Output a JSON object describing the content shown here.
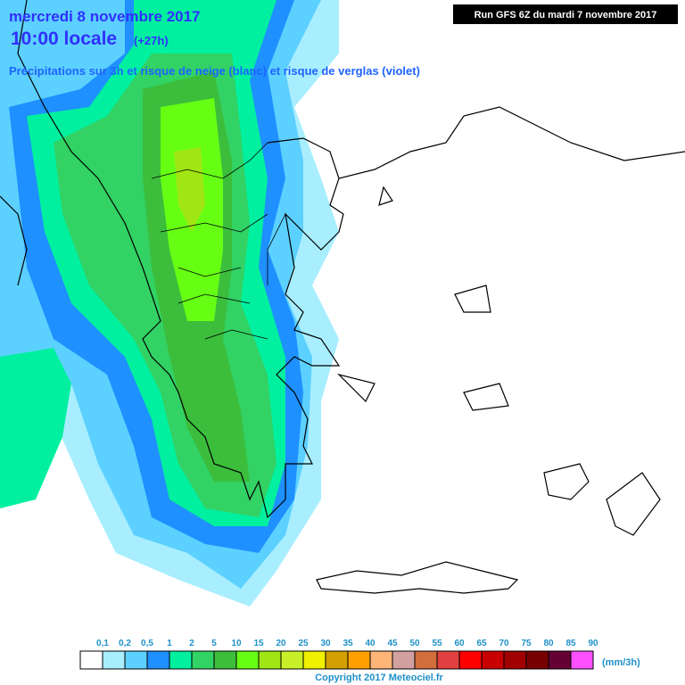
{
  "header": {
    "date": "mercredi 8 novembre 2017",
    "time": "10:00 locale",
    "offset": "(+27h)",
    "subtitle": "Précipitations sur 3h et risque de neige (blanc) et risque de verglas (violet)",
    "run": "Run GFS 6Z du mardi 7 novembre 2017"
  },
  "legend": {
    "labels": [
      "0,1",
      "0,2",
      "0,5",
      "1",
      "2",
      "5",
      "10",
      "15",
      "20",
      "25",
      "30",
      "35",
      "40",
      "45",
      "50",
      "55",
      "60",
      "65",
      "70",
      "75",
      "80",
      "85",
      "90"
    ],
    "colors": [
      "#ffffff",
      "#a8eeff",
      "#5cd0ff",
      "#1e90ff",
      "#00f0a0",
      "#32d264",
      "#3cbe3c",
      "#66ff14",
      "#a0e614",
      "#c8f028",
      "#f0f000",
      "#d2a000",
      "#ffa000",
      "#ffb478",
      "#d2a0a0",
      "#d26e3c",
      "#e04040",
      "#ff0000",
      "#c80000",
      "#a00000",
      "#780000",
      "#640032",
      "#ff50ff"
    ],
    "unit": "(mm/3h)"
  },
  "footer": {
    "copyright": "Copyright 2017 Meteociel.fr"
  }
}
